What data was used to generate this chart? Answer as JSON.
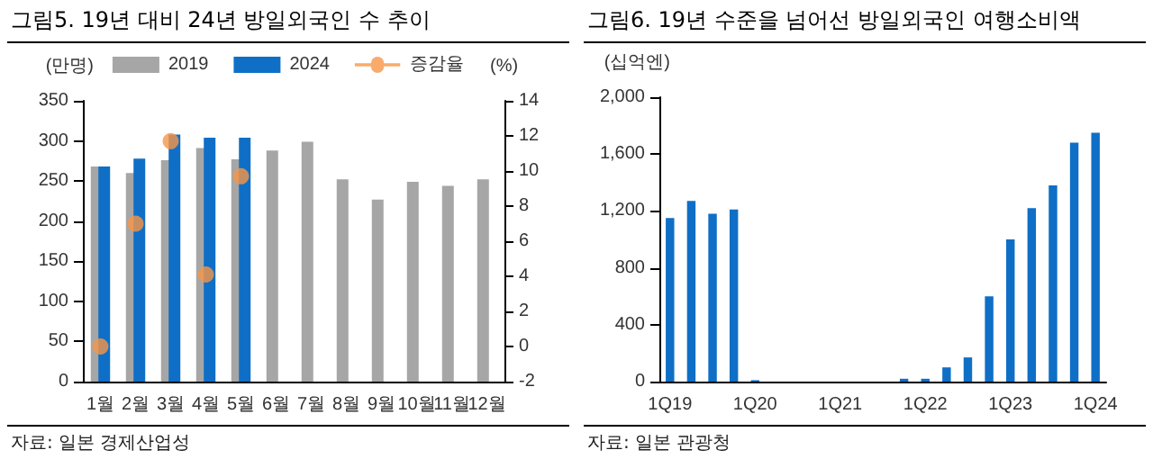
{
  "chart_data": [
    {
      "type": "bar",
      "title": "그림5. 19년 대비 24년 방일외국인 수 추이",
      "ylabel": "(만명)",
      "y2label": "(%)",
      "annotations": [
        "자료: 일본 경제산업성"
      ],
      "categories": [
        "1월",
        "2월",
        "3월",
        "4월",
        "5월",
        "6월",
        "7월",
        "8월",
        "9월",
        "10월",
        "11월",
        "12월"
      ],
      "series": [
        {
          "name": "2019",
          "color": "#a6a6a6",
          "values": [
            268,
            260,
            276,
            291,
            277,
            288,
            299,
            252,
            227,
            249,
            244,
            252
          ]
        },
        {
          "name": "2024",
          "color": "#0f6fc6",
          "values": [
            268,
            278,
            308,
            304,
            304,
            null,
            null,
            null,
            null,
            null,
            null,
            null
          ]
        },
        {
          "name": "증감율",
          "type": "scatter",
          "axis": "y2",
          "color": "#f79646",
          "marker": "circle",
          "values": [
            0,
            7.0,
            11.7,
            4.1,
            9.7,
            null,
            null,
            null,
            null,
            null,
            null,
            null
          ]
        }
      ],
      "ylim": [
        0,
        350
      ],
      "yticks": [
        0,
        50,
        100,
        150,
        200,
        250,
        300,
        350
      ],
      "y2lim": [
        -2,
        14
      ],
      "y2ticks": [
        -2,
        0,
        2,
        4,
        6,
        8,
        10,
        12,
        14
      ],
      "legend": "top",
      "grid": false
    },
    {
      "type": "bar",
      "title": "그림6.  19년 수준을 넘어선 방일외국인 여행소비액",
      "ylabel": "(십억엔)",
      "annotations": [
        "자료: 일본 관광청"
      ],
      "categories": [
        "1Q19",
        null,
        null,
        null,
        "1Q20",
        null,
        null,
        null,
        "1Q21",
        null,
        null,
        null,
        "1Q22",
        null,
        null,
        null,
        "1Q23",
        null,
        null,
        null,
        "1Q24"
      ],
      "series": [
        {
          "color": "#0f6fc6",
          "values": [
            1150,
            1270,
            1180,
            1210,
            10,
            0,
            0,
            0,
            0,
            0,
            0,
            20,
            20,
            100,
            170,
            600,
            1000,
            1220,
            1380,
            1680,
            1750
          ]
        }
      ],
      "ylim": [
        0,
        2000
      ],
      "yticks": [
        {
          "value": 0,
          "label": "0"
        },
        {
          "value": 400,
          "label": "400"
        },
        {
          "value": 800,
          "label": "800"
        },
        {
          "value": 1200,
          "label": "1,200"
        },
        {
          "value": 1600,
          "label": "1,600"
        },
        {
          "value": 2000,
          "label": "2,000"
        }
      ],
      "legend": false,
      "grid": false
    }
  ]
}
